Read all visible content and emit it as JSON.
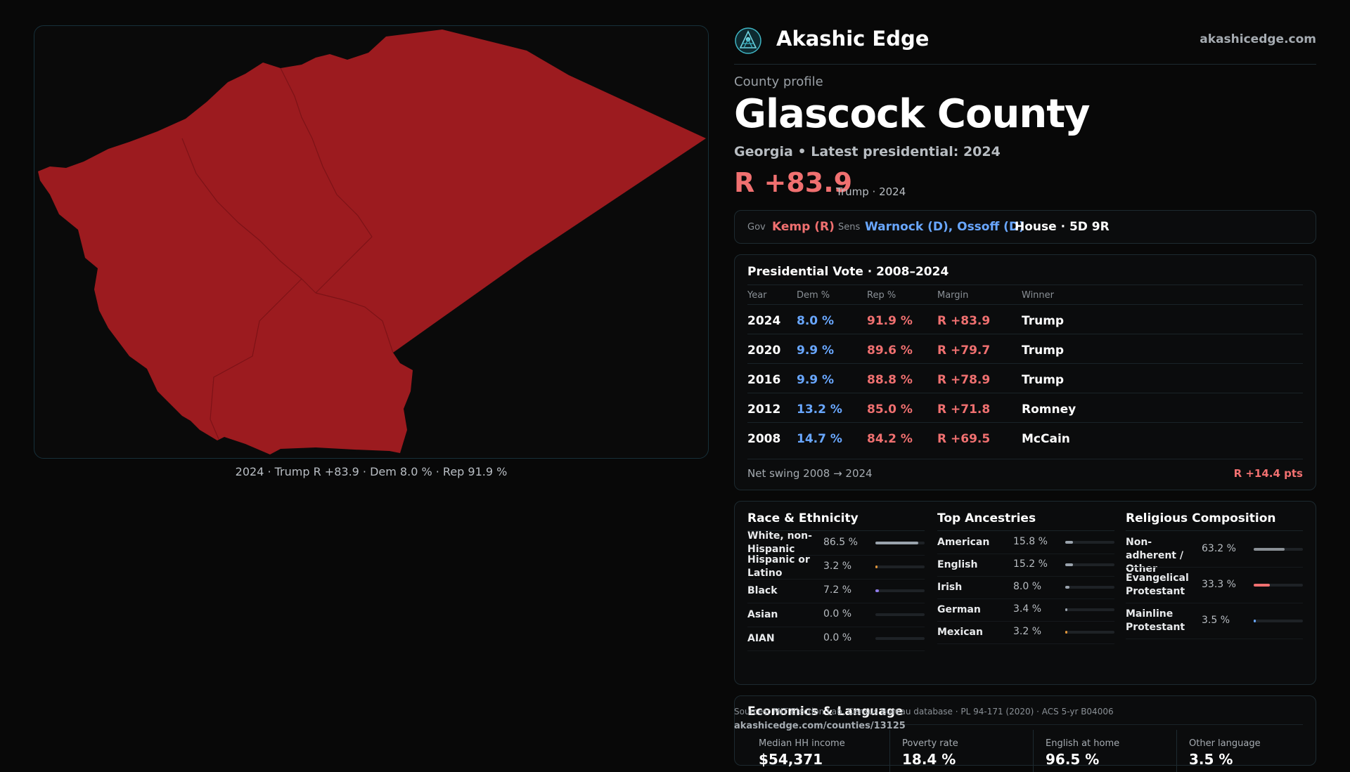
{
  "map": {
    "caption": "2024 · Trump R +83.9 · Dem 8.0 % · Rep 91.9 %",
    "fill_color": "#9c1b1f"
  },
  "brand": {
    "name": "Akashic Edge",
    "site": "akashicedge.com",
    "logo_icon": "akashic-logo-icon"
  },
  "profile": {
    "eyebrow": "County profile",
    "title": "Glascock County",
    "subtitle": "Georgia • Latest presidential: 2024",
    "margin": "R +83.9",
    "margin_note": "Trump · 2024"
  },
  "officials": {
    "gov_label": "Gov",
    "gov_value": "Kemp (R)",
    "sens_label": "Sens",
    "sens_value": "Warnock (D), Ossoff (D)",
    "house": "House · 5D 9R"
  },
  "presidential": {
    "title": "Presidential Vote · 2008–2024",
    "columns": [
      "Year",
      "Dem %",
      "Rep %",
      "Margin",
      "Winner"
    ],
    "rows": [
      {
        "year": "2024",
        "dem": "8.0 %",
        "rep": "91.9 %",
        "margin": "R +83.9",
        "winner": "Trump"
      },
      {
        "year": "2020",
        "dem": "9.9 %",
        "rep": "89.6 %",
        "margin": "R +79.7",
        "winner": "Trump"
      },
      {
        "year": "2016",
        "dem": "9.9 %",
        "rep": "88.8 %",
        "margin": "R +78.9",
        "winner": "Trump"
      },
      {
        "year": "2012",
        "dem": "13.2 %",
        "rep": "85.0 %",
        "margin": "R +71.8",
        "winner": "Romney"
      },
      {
        "year": "2008",
        "dem": "14.7 %",
        "rep": "84.2 %",
        "margin": "R +69.5",
        "winner": "McCain"
      }
    ],
    "swing_label": "Net swing 2008 → 2024",
    "swing_value": "R +14.4 pts"
  },
  "race": {
    "title": "Race & Ethnicity",
    "rows": [
      {
        "label": "White, non-Hispanic",
        "value": "86.5 %",
        "fraction": 0.865,
        "color": "#9aa3ad"
      },
      {
        "label": "Hispanic or Latino",
        "value": "3.2 %",
        "fraction": 0.032,
        "color": "#e0953a"
      },
      {
        "label": "Black",
        "value": "7.2 %",
        "fraction": 0.072,
        "color": "#8f7be8"
      },
      {
        "label": "Asian",
        "value": "0.0 %",
        "fraction": 0.0,
        "color": "#4aa3a3"
      },
      {
        "label": "AIAN",
        "value": "0.0 %",
        "fraction": 0.0,
        "color": "#4aa3a3"
      }
    ]
  },
  "ancestry": {
    "title": "Top Ancestries",
    "rows": [
      {
        "label": "American",
        "value": "15.8 %",
        "fraction": 0.158,
        "color": "#9aa3ad"
      },
      {
        "label": "English",
        "value": "15.2 %",
        "fraction": 0.152,
        "color": "#9aa3ad"
      },
      {
        "label": "Irish",
        "value": "8.0 %",
        "fraction": 0.08,
        "color": "#9aa3ad"
      },
      {
        "label": "German",
        "value": "3.4 %",
        "fraction": 0.034,
        "color": "#9aa3ad"
      },
      {
        "label": "Mexican",
        "value": "3.2 %",
        "fraction": 0.032,
        "color": "#e0953a"
      }
    ]
  },
  "religion": {
    "title": "Religious Composition",
    "rows": [
      {
        "label": "Non-adherent / Other",
        "value": "63.2 %",
        "fraction": 0.632,
        "color": "#8a9096"
      },
      {
        "label": "Evangelical Protestant",
        "value": "33.3 %",
        "fraction": 0.333,
        "color": "#f07070"
      },
      {
        "label": "Mainline Protestant",
        "value": "3.5 %",
        "fraction": 0.035,
        "color": "#69a7ff"
      }
    ]
  },
  "economics": {
    "title": "Economics & Language",
    "items": [
      {
        "label": "Median HH income",
        "value": "$54,371"
      },
      {
        "label": "Poverty rate",
        "value": "18.4 %"
      },
      {
        "label": "English at home",
        "value": "96.5 %"
      },
      {
        "label": "Other language",
        "value": "3.5 %"
      }
    ]
  },
  "source": {
    "text": "Sources: MIT Election Lab, Census Bureau database · PL 94-171 (2020) · ACS 5-yr B04006",
    "url": "akashicedge.com/counties/13125"
  }
}
